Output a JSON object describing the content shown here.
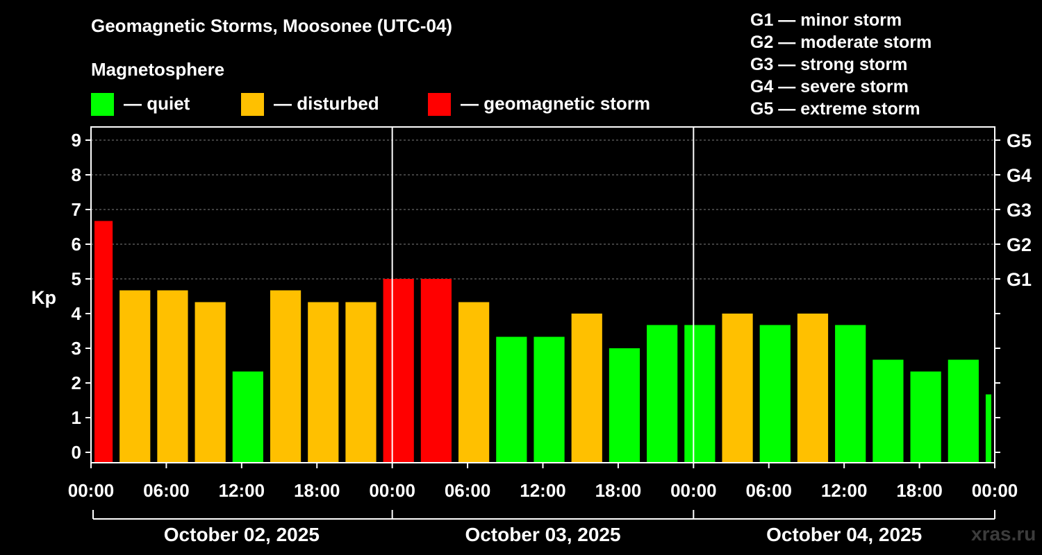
{
  "title": "Geomagnetic Storms, Moosonee (UTC-04)",
  "magnetosphere": {
    "heading": "Magnetosphere",
    "legend": [
      {
        "label": "— quiet",
        "color": "#00ff00"
      },
      {
        "label": "— disturbed",
        "color": "#ffc000"
      },
      {
        "label": "— geomagnetic storm",
        "color": "#ff0000"
      }
    ]
  },
  "storm_scale": [
    {
      "code": "G1",
      "label": "G1 — minor storm"
    },
    {
      "code": "G2",
      "label": "G2 — moderate storm"
    },
    {
      "code": "G3",
      "label": "G3 — strong storm"
    },
    {
      "code": "G4",
      "label": "G4 — severe storm"
    },
    {
      "code": "G5",
      "label": "G5 — extreme storm"
    }
  ],
  "watermark": "xras.ru",
  "chart_data": {
    "type": "bar",
    "ylabel": "Kp",
    "ylim": [
      0,
      9
    ],
    "y_ticks": [
      "0",
      "1",
      "2",
      "3",
      "4",
      "5",
      "6",
      "7",
      "8",
      "9"
    ],
    "g_levels": [
      {
        "kp": 5,
        "label": "G1"
      },
      {
        "kp": 6,
        "label": "G2"
      },
      {
        "kp": 7,
        "label": "G3"
      },
      {
        "kp": 8,
        "label": "G4"
      },
      {
        "kp": 9,
        "label": "G5"
      }
    ],
    "x_hours_range": [
      0,
      72
    ],
    "x_ticks": [
      {
        "h": 0,
        "label": "00:00"
      },
      {
        "h": 6,
        "label": "06:00"
      },
      {
        "h": 12,
        "label": "12:00"
      },
      {
        "h": 18,
        "label": "18:00"
      },
      {
        "h": 24,
        "label": "00:00"
      },
      {
        "h": 30,
        "label": "06:00"
      },
      {
        "h": 36,
        "label": "12:00"
      },
      {
        "h": 42,
        "label": "18:00"
      },
      {
        "h": 48,
        "label": "00:00"
      },
      {
        "h": 54,
        "label": "06:00"
      },
      {
        "h": 60,
        "label": "12:00"
      },
      {
        "h": 66,
        "label": "18:00"
      },
      {
        "h": 72,
        "label": "00:00"
      }
    ],
    "days": [
      {
        "label": "October 02, 2025",
        "start_h": 0,
        "end_h": 24
      },
      {
        "label": "October 03, 2025",
        "start_h": 24,
        "end_h": 48
      },
      {
        "label": "October 04, 2025",
        "start_h": 48,
        "end_h": 72
      }
    ],
    "colors": {
      "quiet": "#00ff00",
      "disturbed": "#ffc000",
      "storm": "#ff0000"
    },
    "bars": [
      {
        "start_h": 0,
        "end_h": 2,
        "kp": 6.67,
        "status": "storm"
      },
      {
        "start_h": 2,
        "end_h": 5,
        "kp": 4.67,
        "status": "disturbed"
      },
      {
        "start_h": 5,
        "end_h": 8,
        "kp": 4.67,
        "status": "disturbed"
      },
      {
        "start_h": 8,
        "end_h": 11,
        "kp": 4.33,
        "status": "disturbed"
      },
      {
        "start_h": 11,
        "end_h": 14,
        "kp": 2.33,
        "status": "quiet"
      },
      {
        "start_h": 14,
        "end_h": 17,
        "kp": 4.67,
        "status": "disturbed"
      },
      {
        "start_h": 17,
        "end_h": 20,
        "kp": 4.33,
        "status": "disturbed"
      },
      {
        "start_h": 20,
        "end_h": 23,
        "kp": 4.33,
        "status": "disturbed"
      },
      {
        "start_h": 23,
        "end_h": 26,
        "kp": 5.0,
        "status": "storm"
      },
      {
        "start_h": 26,
        "end_h": 29,
        "kp": 5.0,
        "status": "storm"
      },
      {
        "start_h": 29,
        "end_h": 32,
        "kp": 4.33,
        "status": "disturbed"
      },
      {
        "start_h": 32,
        "end_h": 35,
        "kp": 3.33,
        "status": "quiet"
      },
      {
        "start_h": 35,
        "end_h": 38,
        "kp": 3.33,
        "status": "quiet"
      },
      {
        "start_h": 38,
        "end_h": 41,
        "kp": 4.0,
        "status": "disturbed"
      },
      {
        "start_h": 41,
        "end_h": 44,
        "kp": 3.0,
        "status": "quiet"
      },
      {
        "start_h": 44,
        "end_h": 47,
        "kp": 3.67,
        "status": "quiet"
      },
      {
        "start_h": 47,
        "end_h": 50,
        "kp": 3.67,
        "status": "quiet"
      },
      {
        "start_h": 50,
        "end_h": 53,
        "kp": 4.0,
        "status": "disturbed"
      },
      {
        "start_h": 53,
        "end_h": 56,
        "kp": 3.67,
        "status": "quiet"
      },
      {
        "start_h": 56,
        "end_h": 59,
        "kp": 4.0,
        "status": "disturbed"
      },
      {
        "start_h": 59,
        "end_h": 62,
        "kp": 3.67,
        "status": "quiet"
      },
      {
        "start_h": 62,
        "end_h": 65,
        "kp": 2.67,
        "status": "quiet"
      },
      {
        "start_h": 65,
        "end_h": 68,
        "kp": 2.33,
        "status": "quiet"
      },
      {
        "start_h": 68,
        "end_h": 71,
        "kp": 2.67,
        "status": "quiet"
      },
      {
        "start_h": 71,
        "end_h": 72,
        "kp": 1.67,
        "status": "quiet"
      }
    ]
  }
}
